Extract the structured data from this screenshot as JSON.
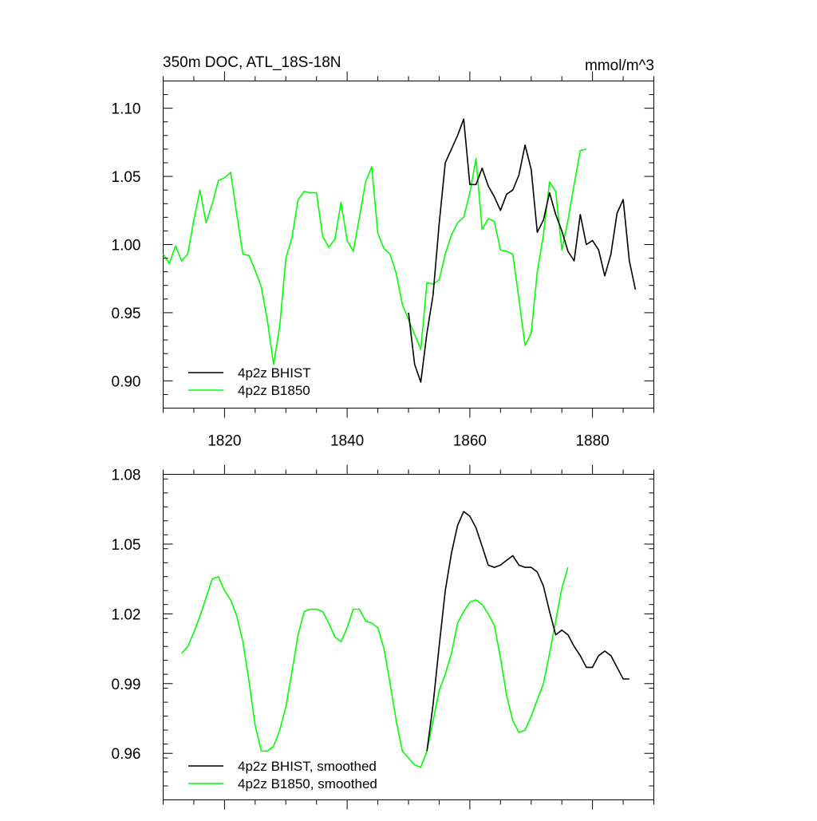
{
  "colors": {
    "bhist": "#000000",
    "b1850": "#00ff00"
  },
  "chart_data": [
    {
      "type": "line",
      "title": "350m DOC, ATL_18S-18N",
      "units": "mmol/m^3",
      "xlim": [
        1810,
        1890
      ],
      "ylim": [
        0.88,
        1.12
      ],
      "yticks": [
        0.9,
        0.95,
        1.0,
        1.05,
        1.1
      ],
      "ytick_labels": [
        "0.90",
        "0.95",
        "1.00",
        "1.05",
        "1.10"
      ],
      "xticks": [
        1820,
        1840,
        1860,
        1880
      ],
      "xtick_labels": [
        "1820",
        "1840",
        "1860",
        "1880"
      ],
      "series": [
        {
          "name": "4p2z BHIST",
          "color": "#000000",
          "x": [
            1850,
            1851,
            1852,
            1853,
            1854,
            1855,
            1856,
            1857,
            1858,
            1859,
            1860,
            1861,
            1862,
            1863,
            1864,
            1865,
            1866,
            1867,
            1868,
            1869,
            1870,
            1871,
            1872,
            1873,
            1874,
            1875,
            1876,
            1877,
            1878,
            1879,
            1880,
            1881,
            1882,
            1883,
            1884,
            1885,
            1886,
            1887
          ],
          "values": [
            0.95,
            0.912,
            0.899,
            0.935,
            0.963,
            1.015,
            1.06,
            1.07,
            1.08,
            1.092,
            1.044,
            1.044,
            1.056,
            1.043,
            1.035,
            1.025,
            1.037,
            1.04,
            1.051,
            1.073,
            1.055,
            1.009,
            1.018,
            1.038,
            1.022,
            1.01,
            0.995,
            0.988,
            1.022,
            1.0,
            1.003,
            0.996,
            0.977,
            0.993,
            1.023,
            1.033,
            0.988,
            0.967
          ]
        },
        {
          "name": "4p2z B1850",
          "color": "#00ff00",
          "x": [
            1810,
            1811,
            1812,
            1813,
            1814,
            1815,
            1816,
            1817,
            1818,
            1819,
            1820,
            1821,
            1822,
            1823,
            1824,
            1825,
            1826,
            1827,
            1828,
            1829,
            1830,
            1831,
            1832,
            1833,
            1834,
            1835,
            1836,
            1837,
            1838,
            1839,
            1840,
            1841,
            1842,
            1843,
            1844,
            1845,
            1846,
            1847,
            1848,
            1849,
            1850,
            1851,
            1852,
            1853,
            1854,
            1855,
            1856,
            1857,
            1858,
            1859,
            1860,
            1861,
            1862,
            1863,
            1864,
            1865,
            1866,
            1867,
            1868,
            1869,
            1870,
            1871,
            1872,
            1873,
            1874,
            1875,
            1876,
            1877,
            1878,
            1879
          ],
          "values": [
            0.993,
            0.986,
            0.999,
            0.988,
            0.993,
            1.018,
            1.04,
            1.016,
            1.03,
            1.047,
            1.049,
            1.053,
            1.022,
            0.993,
            0.992,
            0.981,
            0.969,
            0.944,
            0.912,
            0.94,
            0.99,
            1.005,
            1.033,
            1.039,
            1.038,
            1.038,
            1.006,
            0.998,
            1.004,
            1.031,
            1.003,
            0.995,
            1.02,
            1.046,
            1.057,
            1.008,
            0.997,
            0.993,
            0.979,
            0.956,
            0.945,
            0.934,
            0.923,
            0.972,
            0.971,
            0.974,
            0.993,
            1.007,
            1.016,
            1.02,
            1.038,
            1.063,
            1.011,
            1.019,
            1.017,
            0.996,
            0.995,
            0.993,
            0.96,
            0.926,
            0.935,
            0.98,
            1.007,
            1.046,
            1.039,
            0.996,
            1.018,
            1.044,
            1.069,
            1.07
          ]
        }
      ]
    },
    {
      "type": "line",
      "xlim": [
        1810,
        1890
      ],
      "ylim": [
        0.94,
        1.08
      ],
      "yticks": [
        0.96,
        0.99,
        1.02,
        1.05,
        1.08
      ],
      "ytick_labels": [
        "0.96",
        "0.99",
        "1.02",
        "1.05",
        "1.08"
      ],
      "xticks": [
        1820,
        1840,
        1860,
        1880
      ],
      "xtick_labels": [],
      "series": [
        {
          "name": "4p2z BHIST, smoothed",
          "color": "#000000",
          "x": [
            1853,
            1854,
            1855,
            1856,
            1857,
            1858,
            1859,
            1860,
            1861,
            1862,
            1863,
            1864,
            1865,
            1866,
            1867,
            1868,
            1869,
            1870,
            1871,
            1872,
            1873,
            1874,
            1875,
            1876,
            1877,
            1878,
            1879,
            1880,
            1881,
            1882,
            1883,
            1884,
            1885,
            1886
          ],
          "values": [
            0.961,
            0.981,
            1.006,
            1.03,
            1.046,
            1.058,
            1.064,
            1.062,
            1.057,
            1.049,
            1.041,
            1.04,
            1.041,
            1.043,
            1.045,
            1.041,
            1.04,
            1.04,
            1.038,
            1.032,
            1.021,
            1.011,
            1.013,
            1.011,
            1.006,
            1.002,
            0.997,
            0.997,
            1.002,
            1.004,
            1.002,
            0.997,
            0.992,
            0.992
          ]
        },
        {
          "name": "4p2z B1850, smoothed",
          "color": "#00ff00",
          "x": [
            1813,
            1814,
            1815,
            1816,
            1817,
            1818,
            1819,
            1820,
            1821,
            1822,
            1823,
            1824,
            1825,
            1826,
            1827,
            1828,
            1829,
            1830,
            1831,
            1832,
            1833,
            1834,
            1835,
            1836,
            1837,
            1838,
            1839,
            1840,
            1841,
            1842,
            1843,
            1844,
            1845,
            1846,
            1847,
            1848,
            1849,
            1850,
            1851,
            1852,
            1853,
            1854,
            1855,
            1856,
            1857,
            1858,
            1859,
            1860,
            1861,
            1862,
            1863,
            1864,
            1865,
            1866,
            1867,
            1868,
            1869,
            1870,
            1871,
            1872,
            1873,
            1874,
            1875,
            1876
          ],
          "values": [
            1.003,
            1.006,
            1.012,
            1.019,
            1.027,
            1.035,
            1.036,
            1.03,
            1.026,
            1.019,
            1.008,
            0.991,
            0.972,
            0.961,
            0.961,
            0.963,
            0.97,
            0.98,
            0.995,
            1.011,
            1.021,
            1.022,
            1.022,
            1.021,
            1.016,
            1.01,
            1.008,
            1.014,
            1.022,
            1.022,
            1.017,
            1.016,
            1.014,
            1.005,
            0.99,
            0.974,
            0.961,
            0.958,
            0.955,
            0.954,
            0.961,
            0.974,
            0.987,
            0.994,
            1.003,
            1.016,
            1.021,
            1.025,
            1.026,
            1.024,
            1.02,
            1.015,
            1.001,
            0.985,
            0.974,
            0.969,
            0.97,
            0.976,
            0.983,
            0.99,
            1.003,
            1.017,
            1.031,
            1.04
          ]
        }
      ]
    }
  ]
}
